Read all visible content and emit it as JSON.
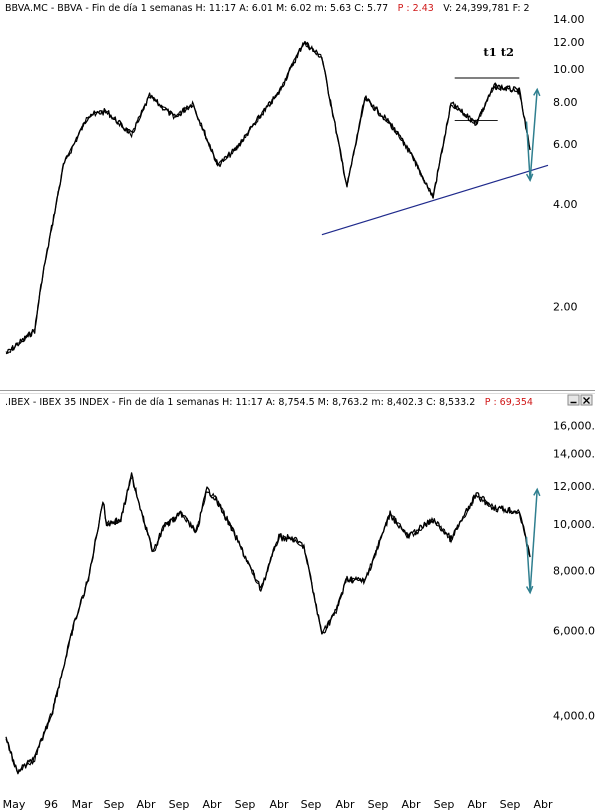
{
  "colors": {
    "price": "#000000",
    "trendline": "#1f2a8c",
    "arrow": "#2f7f8f",
    "level": "#000000",
    "separator": "#9a9a9a",
    "header_red": "#d01818"
  },
  "window_buttons": [
    "minimize-button",
    "close-button"
  ],
  "chart_data": [
    {
      "type": "line",
      "header": {
        "left": "BBVA.MC - BBVA - Fin de día 1 semanas  H: 11:17  A: 6.01  M: 6.02  m: 5.63  C: 5.77",
        "red": "P : 2.43",
        "right": "V: 24,399,781  F: 2"
      },
      "yscale": "log",
      "ylim": [
        1.15,
        14.5
      ],
      "yticks": [
        2,
        4,
        6,
        8,
        10,
        12,
        14
      ],
      "ytick_labels": [
        "2.00",
        "4.00",
        "6.00",
        "8.00",
        "10.00",
        "12.00",
        "14.00"
      ],
      "x": [
        "1995-05",
        "1996-01",
        "1996-03",
        "1996-09",
        "1997-04",
        "1997-09",
        "1998-04",
        "1998-09",
        "1999-04",
        "1999-09",
        "2000-04",
        "2000-09",
        "2001-04",
        "2001-09",
        "2002-04",
        "2002-09",
        "2003-04",
        "2003-09",
        "2004-04",
        "2004-09",
        "2005-04",
        "2005-09",
        "2006-04",
        "2006-09",
        "2007-04",
        "2007-07"
      ],
      "series": [
        {
          "values": [
            1.45,
            1.7,
            2.4,
            5.2,
            7.3,
            7.5,
            6.4,
            8.3,
            7.2,
            7.9,
            5.2,
            5.8,
            7.3,
            8.5,
            12.0,
            10.8,
            4.5,
            8.2,
            6.9,
            5.8,
            4.2,
            7.9,
            6.9,
            8.9,
            8.6,
            5.77
          ]
        }
      ],
      "annotations": [
        {
          "text": "t1 t2",
          "x": "2006-06",
          "y": 10.9
        }
      ],
      "trendline": {
        "from": [
          "2002-09",
          3.25
        ],
        "to": [
          "2007-12",
          5.2
        ]
      },
      "levels": [
        {
          "y": 9.4,
          "from": "2005-10",
          "to": "2007-04"
        },
        {
          "y": 7.05,
          "from": "2005-10",
          "to": "2006-10"
        }
      ],
      "projection": [
        [
          "2007-06",
          7.0
        ],
        [
          "2007-07",
          4.7
        ],
        [
          "2007-09",
          8.7
        ]
      ]
    },
    {
      "type": "line",
      "header": {
        "left": ".IBEX - IBEX 35 INDEX - Fin de día 1 semanas  H: 11:17  A: 8,754.5  M: 8,763.2  m: 8,402.3  C: 8,533.2",
        "red": "P : 69,354",
        "right": ""
      },
      "yscale": "log",
      "ylim": [
        2800,
        17500
      ],
      "yticks": [
        4000,
        6000,
        8000,
        10000,
        12000,
        14000,
        16000
      ],
      "ytick_labels": [
        "4,000.0",
        "6,000.0",
        "8,000.0",
        "10,000.0",
        "12,000.0",
        "14,000.0",
        "16,000.0"
      ],
      "x": [
        "1995-05",
        "1995-08",
        "1996-01",
        "1996-06",
        "1996-12",
        "1997-04",
        "1997-08",
        "1997-09",
        "1998-01",
        "1998-04",
        "1998-10",
        "1999-01",
        "1999-06",
        "1999-10",
        "2000-01",
        "2000-03",
        "2000-06",
        "2000-09",
        "2001-04",
        "2001-09",
        "2002-01",
        "2002-04",
        "2002-09",
        "2003-01",
        "2003-04",
        "2003-09",
        "2004-04",
        "2004-09",
        "2005-04",
        "2005-09",
        "2006-04",
        "2006-09",
        "2007-04",
        "2007-07"
      ],
      "series": [
        {
          "values": [
            3600,
            3050,
            3250,
            4100,
            6200,
            7700,
            11200,
            10000,
            10200,
            12600,
            8700,
            9900,
            10500,
            9600,
            11800,
            11400,
            10400,
            9400,
            7300,
            9400,
            9300,
            9000,
            5900,
            6600,
            7700,
            7600,
            10500,
            9400,
            10200,
            9300,
            11500,
            10800,
            10600,
            8533
          ]
        }
      ],
      "projection": [
        [
          "2007-06",
          9400
        ],
        [
          "2007-07",
          7200
        ],
        [
          "2007-09",
          11800
        ]
      ]
    }
  ],
  "x_axis": {
    "labels": [
      "May",
      "96",
      "Mar",
      "Sep",
      "Abr",
      "Sep",
      "Abr",
      "Sep",
      "Abr",
      "Sep",
      "Abr",
      "Sep",
      "Abr",
      "Sep",
      "Abr",
      "Sep",
      "Abr"
    ]
  }
}
